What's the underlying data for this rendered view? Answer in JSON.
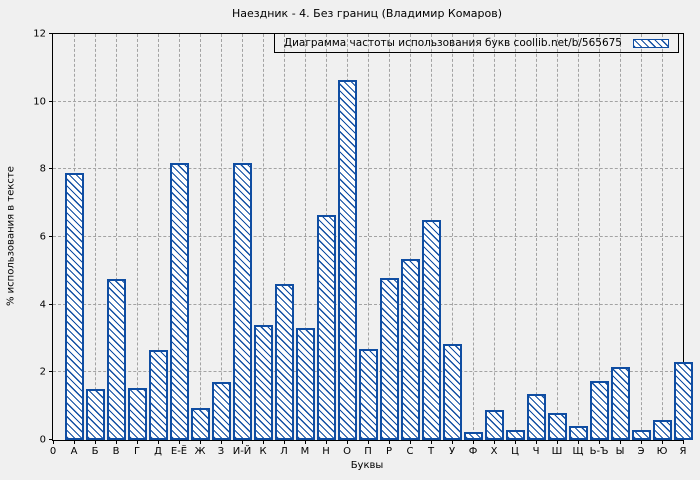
{
  "chart_data": {
    "type": "bar",
    "title": "Наездник - 4. Без границ (Владимир Комаров)",
    "legend_label": "Диаграмма частоты использования букв coollib.net/b/565675",
    "xlabel": "Буквы",
    "ylabel": "% использования в тексте",
    "x_origin_label": "0",
    "ylim": [
      0,
      12
    ],
    "yticks": [
      0,
      2,
      4,
      6,
      8,
      10,
      12
    ],
    "grid": true,
    "legend_position": "top-right",
    "hatch_style": "diagonal-backslash",
    "categories": [
      "А",
      "Б",
      "В",
      "Г",
      "Д",
      "Е-Ё",
      "Ж",
      "З",
      "И-Й",
      "К",
      "Л",
      "М",
      "Н",
      "О",
      "П",
      "Р",
      "С",
      "Т",
      "У",
      "Ф",
      "Х",
      "Ц",
      "Ч",
      "Ш",
      "Щ",
      "Ь-Ъ",
      "Ы",
      "Э",
      "Ю",
      "Я"
    ],
    "values": [
      7.9,
      1.5,
      4.75,
      1.55,
      2.65,
      8.2,
      0.95,
      1.7,
      8.2,
      3.4,
      4.6,
      3.3,
      6.65,
      10.65,
      2.7,
      4.8,
      5.35,
      6.5,
      2.85,
      0.25,
      0.9,
      0.3,
      1.35,
      0.8,
      0.4,
      1.75,
      2.15,
      0.3,
      0.6,
      2.3
    ],
    "colors": {
      "bar_border": "#0f4da2",
      "bar_fill": "#ffffff",
      "hatch": "#0f4da2",
      "background": "#f0f0f0",
      "grid": "#a3a3a3",
      "axis": "#000000"
    }
  }
}
